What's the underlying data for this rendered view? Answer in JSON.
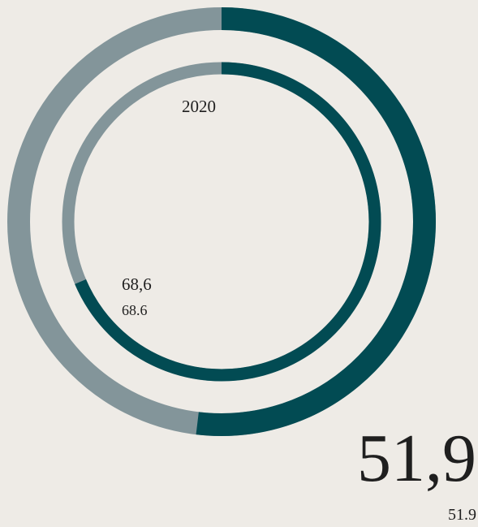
{
  "chart_data": {
    "type": "donut",
    "rings": [
      {
        "value": 51.9,
        "value_label": "51,9",
        "color": "#024b53",
        "track_color": "#83959a"
      },
      {
        "label": "2020",
        "value": 68.6,
        "value_label": "68,6",
        "color": "#024b53",
        "track_color": "#83959a"
      }
    ]
  }
}
